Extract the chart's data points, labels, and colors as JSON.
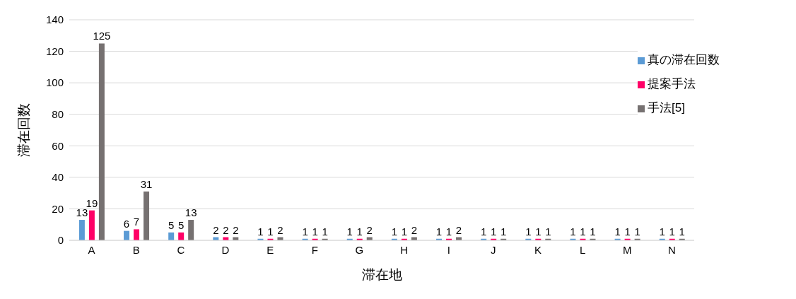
{
  "chart_data": {
    "type": "bar",
    "xlabel": "滞在地",
    "ylabel": "滞在回数",
    "categories": [
      "A",
      "B",
      "C",
      "D",
      "E",
      "F",
      "G",
      "H",
      "I",
      "J",
      "K",
      "L",
      "M",
      "N"
    ],
    "series": [
      {
        "name": "真の滞在回数",
        "color": "#5b9bd5",
        "values": [
          13,
          6,
          5,
          2,
          1,
          1,
          1,
          1,
          1,
          1,
          1,
          1,
          1,
          1
        ]
      },
      {
        "name": "提案手法",
        "color": "#ff0066",
        "values": [
          19,
          7,
          5,
          2,
          1,
          1,
          1,
          1,
          1,
          1,
          1,
          1,
          1,
          1
        ]
      },
      {
        "name": "手法[5]",
        "color": "#767171",
        "values": [
          125,
          31,
          13,
          2,
          2,
          1,
          2,
          2,
          2,
          1,
          1,
          1,
          1,
          1
        ]
      }
    ],
    "ylim": [
      0,
      140
    ],
    "yticks": [
      0,
      20,
      40,
      60,
      80,
      100,
      120,
      140
    ],
    "grid": "y",
    "legend": "top right",
    "data_labels": true
  }
}
